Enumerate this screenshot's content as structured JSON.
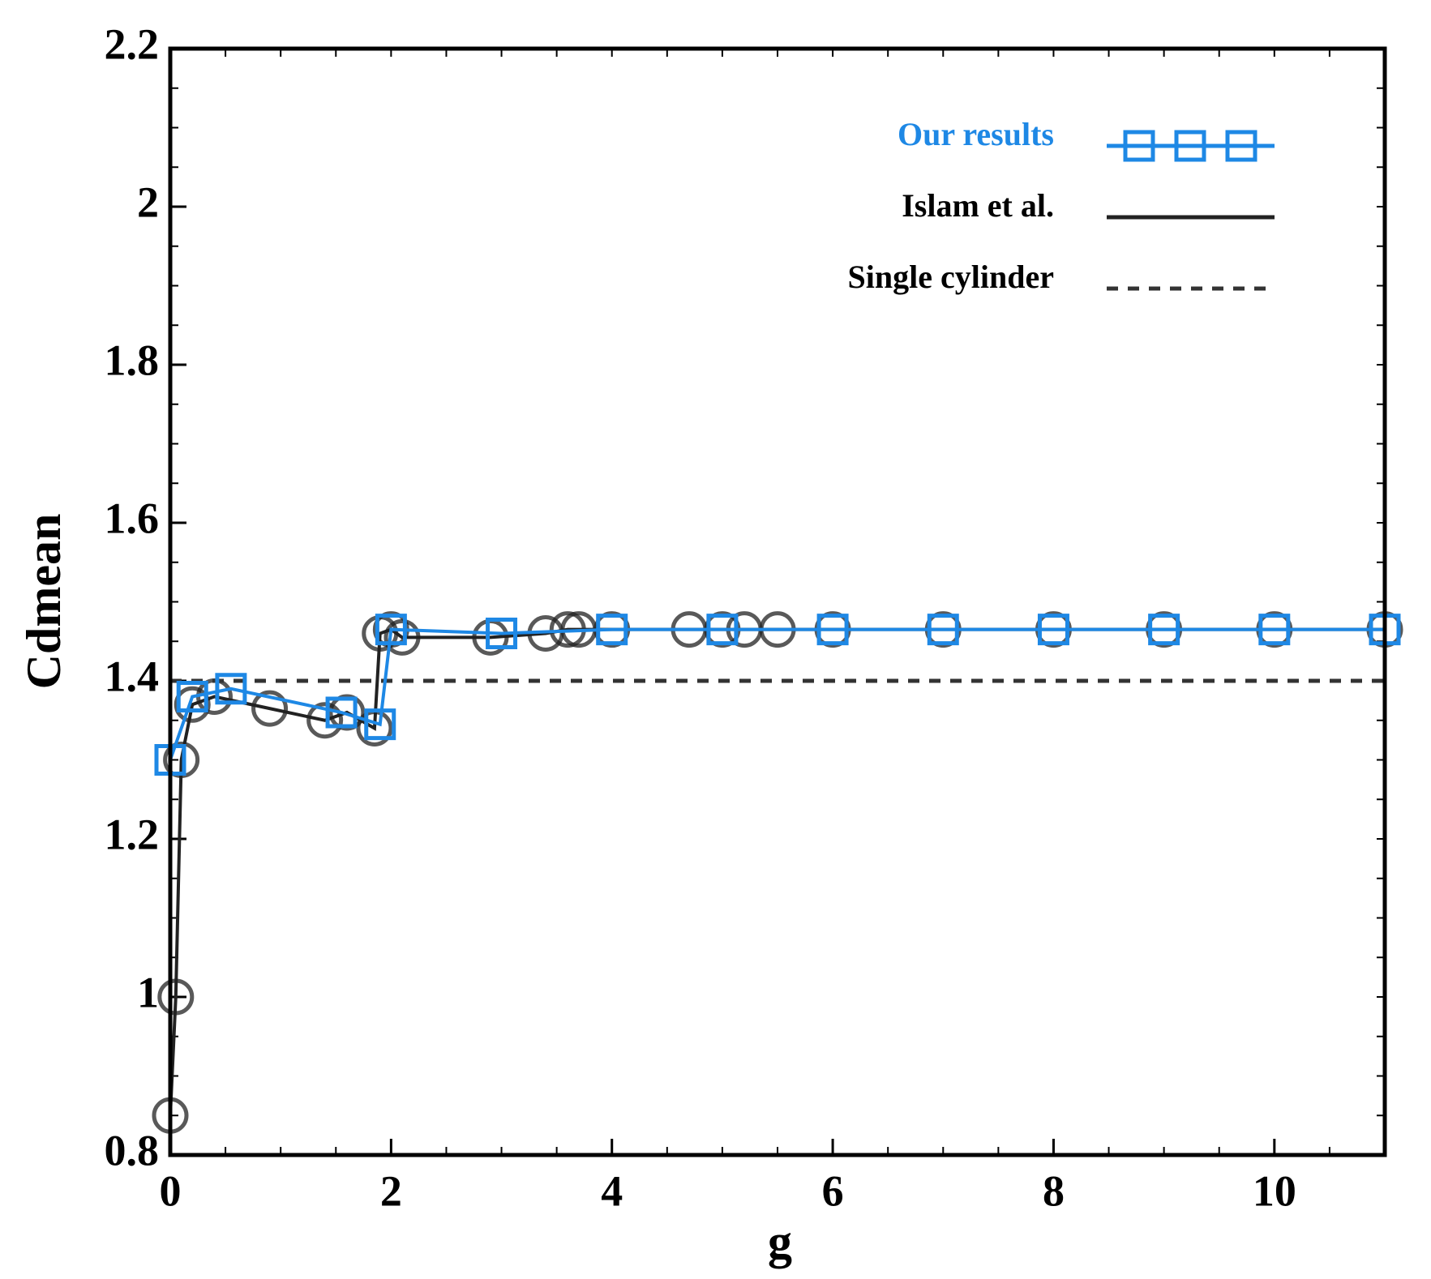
{
  "chart_data": {
    "type": "line",
    "xlabel": "g",
    "ylabel": "Cdmean",
    "xlim": [
      0,
      11
    ],
    "ylim": [
      0.8,
      2.2
    ],
    "xticks": [
      0,
      2,
      4,
      6,
      8,
      10
    ],
    "yticks": [
      0.8,
      1,
      1.2,
      1.4,
      1.6,
      1.8,
      2,
      2.2
    ],
    "legend": "upper right",
    "series": [
      {
        "name": "Our results",
        "color": "#1e88e5",
        "marker": "square",
        "line": "solid",
        "x": [
          0,
          0.2,
          0.55,
          1.55,
          1.9,
          2.0,
          3,
          4,
          5,
          6,
          7,
          8,
          9,
          10,
          11
        ],
        "values": [
          1.3,
          1.38,
          1.39,
          1.36,
          1.345,
          1.465,
          1.46,
          1.465,
          1.465,
          1.465,
          1.465,
          1.465,
          1.465,
          1.465,
          1.465
        ]
      },
      {
        "name": "Islam et al.",
        "color": "#222222",
        "marker": "circle",
        "line": "solid",
        "x": [
          0,
          0.05,
          0.1,
          0.2,
          0.4,
          0.9,
          1.4,
          1.6,
          1.85,
          1.9,
          2.0,
          2.1,
          2.9,
          3.4,
          3.6,
          3.7,
          4,
          4.7,
          5,
          5.2,
          5.5,
          6,
          7,
          8,
          9,
          10,
          11
        ],
        "values": [
          0.85,
          1.0,
          1.3,
          1.37,
          1.38,
          1.365,
          1.35,
          1.36,
          1.34,
          1.46,
          1.465,
          1.455,
          1.455,
          1.46,
          1.465,
          1.465,
          1.465,
          1.465,
          1.465,
          1.465,
          1.465,
          1.465,
          1.465,
          1.465,
          1.465,
          1.465,
          1.465
        ]
      },
      {
        "name": "Single cylinder",
        "color": "#333333",
        "marker": "none",
        "line": "dashed",
        "x": [
          0,
          11
        ],
        "values": [
          1.4,
          1.4
        ]
      }
    ]
  }
}
